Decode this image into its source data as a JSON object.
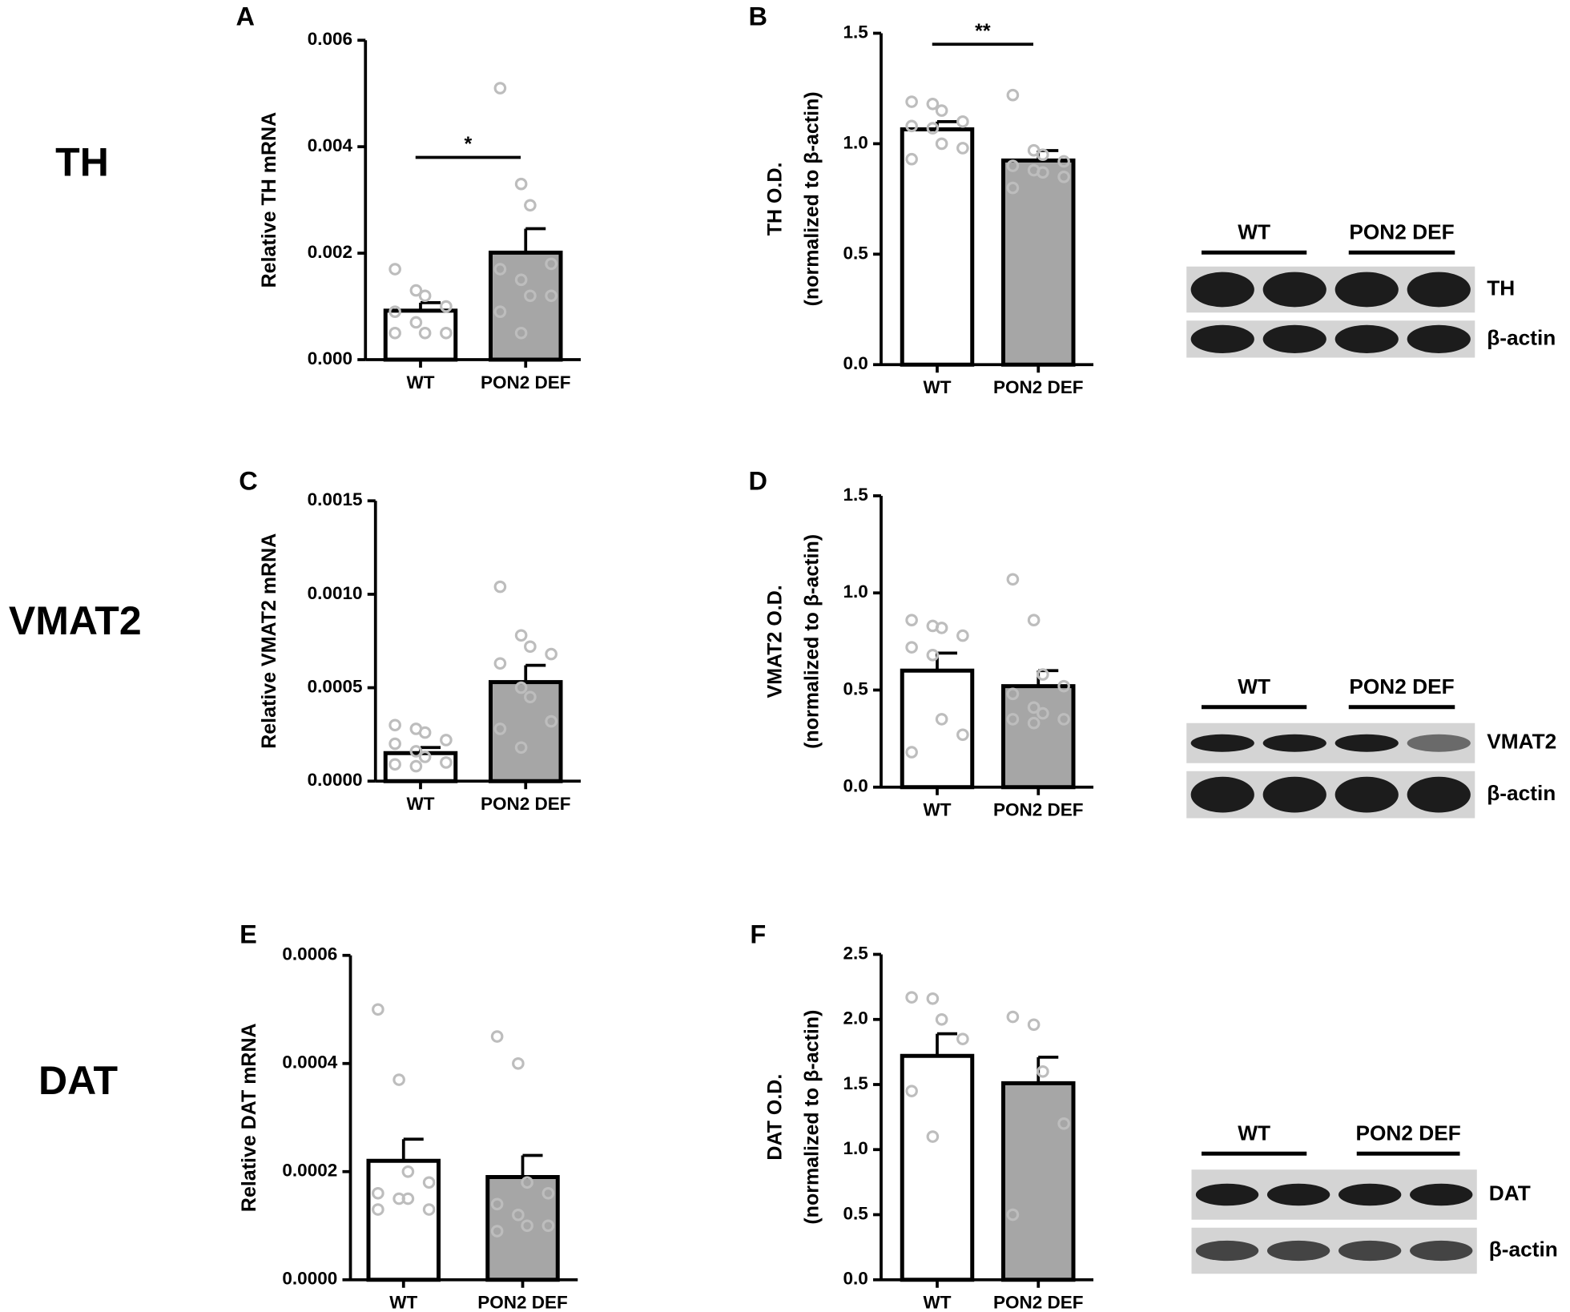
{
  "chart_data": [
    {
      "type": "bar",
      "panel": "A",
      "ylabel": [
        "Relative TH mRNA"
      ],
      "categories": [
        "WT",
        "PON2 DEF"
      ],
      "colors": [
        "#ffffff",
        "#a6a6a6"
      ],
      "values": [
        0.00092,
        0.00201
      ],
      "errors": [
        0.00015,
        0.00045
      ],
      "points": [
        [
          0.0017,
          0.0013,
          0.0012,
          0.001,
          0.0009,
          0.0007,
          0.0005,
          0.0005,
          0.0005
        ],
        [
          0.0051,
          0.0033,
          0.0029,
          0.0018,
          0.0017,
          0.0015,
          0.0012,
          0.0012,
          0.0009,
          0.0005
        ]
      ],
      "ylim": [
        0,
        0.006
      ],
      "yticks": [
        {
          "value": 0,
          "label": "0.000"
        },
        0.002,
        0.004,
        0.006
      ],
      "significance": "*"
    },
    {
      "type": "bar",
      "panel": "B",
      "ylabel": [
        "TH O.D.",
        "(normalized to β-actin)"
      ],
      "categories": [
        "WT",
        "PON2 DEF"
      ],
      "colors": [
        "#ffffff",
        "#a6a6a6"
      ],
      "values": [
        1.065,
        0.924
      ],
      "errors": [
        0.035,
        0.045
      ],
      "points": [
        [
          1.19,
          1.18,
          1.15,
          1.1,
          1.08,
          1.07,
          1.0,
          0.98,
          0.93
        ],
        [
          1.22,
          0.97,
          0.95,
          0.92,
          0.9,
          0.88,
          0.87,
          0.85,
          0.8
        ]
      ],
      "ylim": [
        0,
        1.5
      ],
      "yticks": [
        {
          "value": 0,
          "label": "0.0"
        },
        0.5,
        {
          "value": 1,
          "label": "1.0"
        },
        1.5
      ],
      "significance": "**"
    },
    {
      "type": "bar",
      "panel": "C",
      "ylabel": [
        "Relative VMAT2 mRNA"
      ],
      "categories": [
        "WT",
        "PON2 DEF"
      ],
      "colors": [
        "#ffffff",
        "#a6a6a6"
      ],
      "values": [
        0.00015,
        0.00053
      ],
      "errors": [
        3e-05,
        9e-05
      ],
      "points": [
        [
          0.0003,
          0.00028,
          0.00026,
          0.00022,
          0.0002,
          0.00016,
          0.00013,
          0.0001,
          9e-05,
          8e-05
        ],
        [
          0.00104,
          0.00078,
          0.00072,
          0.00068,
          0.00063,
          0.0005,
          0.00045,
          0.00032,
          0.00028,
          0.00018
        ]
      ],
      "ylim": [
        0,
        0.0015
      ],
      "yticks": [
        {
          "value": 0,
          "label": "0.0000"
        },
        0.0005,
        {
          "value": 0.001,
          "label": "0.0010"
        },
        0.0015
      ]
    },
    {
      "type": "bar",
      "panel": "D",
      "ylabel": [
        "VMAT2 O.D.",
        "(normalized to β-actin)"
      ],
      "categories": [
        "WT",
        "PON2 DEF"
      ],
      "colors": [
        "#ffffff",
        "#a6a6a6"
      ],
      "values": [
        0.6,
        0.52
      ],
      "errors": [
        0.09,
        0.08
      ],
      "points": [
        [
          0.86,
          0.83,
          0.82,
          0.78,
          0.72,
          0.68,
          0.35,
          0.27,
          0.18
        ],
        [
          1.07,
          0.86,
          0.58,
          0.52,
          0.48,
          0.41,
          0.38,
          0.35,
          0.35,
          0.33
        ]
      ],
      "ylim": [
        0,
        1.5
      ],
      "yticks": [
        {
          "value": 0,
          "label": "0.0"
        },
        0.5,
        {
          "value": 1,
          "label": "1.0"
        },
        1.5
      ]
    },
    {
      "type": "bar",
      "panel": "E",
      "ylabel": [
        "Relative DAT mRNA"
      ],
      "categories": [
        "WT",
        "PON2 DEF"
      ],
      "colors": [
        "#ffffff",
        "#a6a6a6"
      ],
      "values": [
        0.00022,
        0.00019
      ],
      "errors": [
        4e-05,
        4e-05
      ],
      "points": [
        [
          0.0005,
          0.00037,
          0.0002,
          0.00018,
          0.00016,
          0.00015,
          0.00015,
          0.00013,
          0.00013
        ],
        [
          0.00045,
          0.0004,
          0.00018,
          0.00016,
          0.00014,
          0.00012,
          0.0001,
          0.0001,
          9e-05
        ]
      ],
      "ylim": [
        0,
        0.0006
      ],
      "yticks": [
        {
          "value": 0,
          "label": "0.0000"
        },
        0.0002,
        0.0004,
        0.0006
      ]
    },
    {
      "type": "bar",
      "panel": "F",
      "ylabel": [
        "DAT O.D.",
        "(normalized to β-actin)"
      ],
      "categories": [
        "WT",
        "PON2 DEF"
      ],
      "colors": [
        "#ffffff",
        "#a6a6a6"
      ],
      "values": [
        1.72,
        1.51
      ],
      "errors": [
        0.17,
        0.2
      ],
      "points": [
        [
          2.17,
          2.16,
          2.0,
          1.85,
          1.45,
          1.1
        ],
        [
          2.02,
          1.96,
          1.6,
          1.2,
          0.5
        ]
      ],
      "ylim": [
        0,
        2.5
      ],
      "yticks": [
        {
          "value": 0,
          "label": "0.0"
        },
        0.5,
        {
          "value": 1,
          "label": "1.0"
        },
        1.5,
        {
          "value": 2,
          "label": "2.0"
        },
        2.5
      ]
    }
  ],
  "rows": [
    {
      "label": "TH",
      "blot": {
        "groups": [
          "WT",
          "PON2 DEF"
        ],
        "bands": [
          "TH",
          "β-actin"
        ]
      }
    },
    {
      "label": "VMAT2",
      "blot": {
        "groups": [
          "WT",
          "PON2 DEF"
        ],
        "bands": [
          "VMAT2",
          "β-actin"
        ]
      }
    },
    {
      "label": "DAT",
      "blot": {
        "groups": [
          "WT",
          "PON2 DEF"
        ],
        "bands": [
          "DAT",
          "β-actin"
        ]
      }
    }
  ]
}
